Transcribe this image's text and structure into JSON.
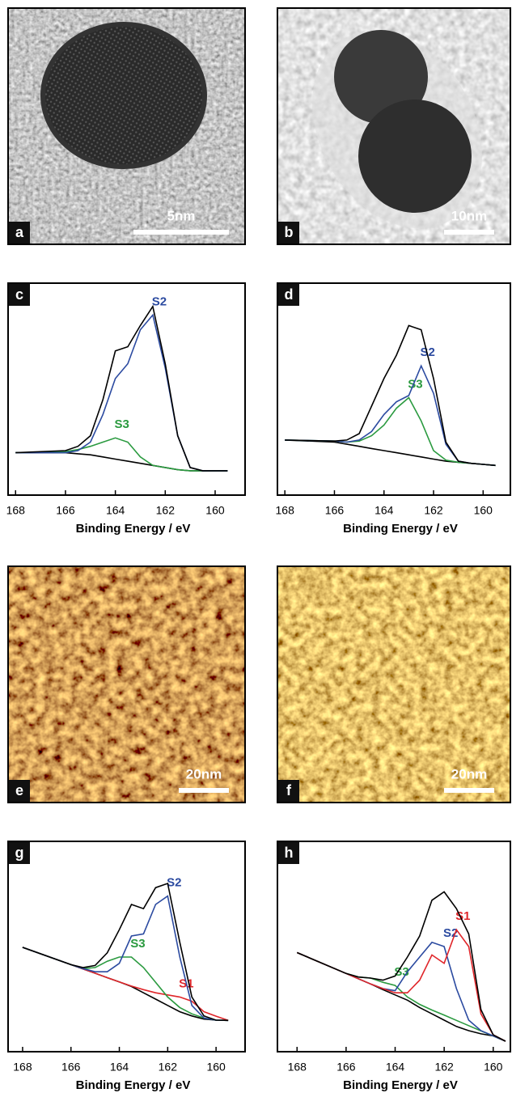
{
  "images": [
    {
      "label": "a",
      "scale_bar": "5nm",
      "kind": "tem1"
    },
    {
      "label": "b",
      "scale_bar": "10nm",
      "kind": "tem2"
    },
    {
      "label": "e",
      "scale_bar": "20nm",
      "kind": "afm1"
    },
    {
      "label": "f",
      "scale_bar": "20nm",
      "kind": "afm2"
    }
  ],
  "chart_data": [
    {
      "type": "line",
      "label": "c",
      "xlabel": "Binding Energy / eV",
      "xlim": [
        168.3,
        158.8
      ],
      "ylim": [
        0,
        100
      ],
      "xticks": [
        168,
        166,
        164,
        162,
        160
      ],
      "x": [
        168,
        166,
        165.5,
        165,
        164.5,
        164,
        163.5,
        163,
        162.5,
        162,
        161.5,
        161,
        160.5,
        160,
        159.5
      ],
      "series": [
        {
          "color": "#000000",
          "values": [
            20,
            20,
            19.5,
            19,
            18,
            17,
            16,
            15,
            14,
            13,
            12,
            11.5,
            11.5,
            11.5,
            11.5
          ]
        },
        {
          "name": "S3",
          "color": "#2a9a3f",
          "values": [
            20,
            20.5,
            21.5,
            23,
            25,
            27,
            25,
            18,
            14,
            13,
            12,
            11.5,
            11.5,
            11.5,
            11.5
          ]
        },
        {
          "name": "S2",
          "color": "#2b4aa0",
          "values": [
            20,
            20,
            21,
            25,
            38,
            55,
            62,
            78,
            85,
            60,
            28,
            13,
            11.5,
            11.5,
            11.5
          ]
        },
        {
          "color": "#000000",
          "values": [
            20,
            21,
            23,
            28,
            45,
            68,
            70,
            80,
            89,
            62,
            28,
            13,
            11.5,
            11.5,
            11.5
          ]
        }
      ]
    },
    {
      "type": "line",
      "label": "d",
      "xlabel": "Binding Energy / eV",
      "xlim": [
        168.3,
        158.9
      ],
      "ylim": [
        0,
        100
      ],
      "xticks": [
        168,
        166,
        164,
        162,
        160
      ],
      "x": [
        168,
        166,
        165.5,
        165,
        164.5,
        164,
        163.5,
        163,
        162.5,
        162,
        161.5,
        161,
        160.5,
        160,
        159.5
      ],
      "series": [
        {
          "color": "#000000",
          "values": [
            26,
            25,
            24,
            23,
            22,
            21,
            20,
            19,
            18,
            17,
            16,
            15.5,
            15,
            14.5,
            14
          ]
        },
        {
          "name": "S3",
          "color": "#2a9a3f",
          "values": [
            26,
            25.5,
            25,
            25.5,
            28,
            33,
            41,
            46,
            35,
            21,
            16.5,
            15.5,
            15,
            14.5,
            14
          ]
        },
        {
          "name": "S2",
          "color": "#2b4aa0",
          "values": [
            26,
            25.5,
            25,
            26,
            30,
            38,
            44,
            47,
            61,
            48,
            24,
            16,
            15,
            14.5,
            14
          ]
        },
        {
          "color": "#000000",
          "values": [
            26,
            25.5,
            26,
            29,
            42,
            55,
            66,
            80,
            78,
            55,
            25,
            16,
            15,
            14.5,
            14
          ]
        }
      ]
    },
    {
      "type": "line",
      "label": "g",
      "xlabel": "Binding Energy / eV",
      "xlim": [
        168.6,
        158.8
      ],
      "ylim": [
        0,
        100
      ],
      "xticks": [
        168,
        166,
        164,
        162,
        160
      ],
      "x": [
        168,
        166,
        165.5,
        165,
        164.5,
        164,
        163.5,
        163,
        162.5,
        162,
        161.5,
        161,
        160.5,
        160,
        159.5
      ],
      "series": [
        {
          "color": "#000000",
          "values": [
            49.6,
            41.4,
            39.3,
            37.3,
            35.2,
            33.2,
            31,
            28,
            25,
            22,
            19,
            17,
            15.5,
            15,
            14.9
          ]
        },
        {
          "name": "S1",
          "color": "#e0262a",
          "values": [
            49.6,
            41.4,
            39.3,
            37.3,
            35.2,
            33.2,
            31.2,
            29.5,
            28,
            27,
            26,
            24,
            19,
            16.9,
            14.9
          ]
        },
        {
          "name": "S3",
          "color": "#2a9a3f",
          "values": [
            49.6,
            41.4,
            39.5,
            40,
            43,
            45,
            45,
            40,
            33,
            26,
            21,
            18,
            16,
            15,
            14.9
          ]
        },
        {
          "name": "S2",
          "color": "#2b4aa0",
          "values": [
            49.6,
            41.4,
            39.5,
            38,
            38,
            42,
            55,
            56,
            70,
            74,
            45,
            22,
            16,
            15,
            14.9
          ]
        },
        {
          "color": "#000000",
          "values": [
            49.6,
            41.4,
            40,
            41,
            47,
            58,
            70,
            68,
            78,
            80,
            52,
            26,
            17,
            15,
            14.9
          ]
        }
      ]
    },
    {
      "type": "line",
      "label": "h",
      "xlabel": "Binding Energy / eV",
      "xlim": [
        168.8,
        159.3
      ],
      "ylim": [
        0,
        100
      ],
      "xticks": [
        168,
        166,
        164,
        162,
        160
      ],
      "x": [
        168,
        166,
        165.5,
        165,
        164.5,
        164,
        163.5,
        163,
        162.5,
        162,
        161.5,
        161,
        160.5,
        160,
        159.5
      ],
      "series": [
        {
          "color": "#000000",
          "values": [
            47.1,
            37.2,
            34.7,
            32.2,
            29.5,
            27,
            24.5,
            21,
            18,
            15,
            12,
            10,
            8.5,
            7.5,
            5
          ]
        },
        {
          "name": "S3",
          "color": "#2a9a3f",
          "values": [
            47.1,
            37.2,
            35.5,
            35,
            33,
            31.5,
            26,
            22.5,
            19.8,
            17.4,
            14.9,
            12.4,
            9.9,
            7.5,
            5
          ]
        },
        {
          "name": "S2",
          "color": "#2b4aa0",
          "values": [
            47.1,
            37.2,
            34.7,
            32.2,
            30,
            29,
            38,
            45,
            52,
            50,
            30,
            15,
            10,
            7.5,
            5
          ]
        },
        {
          "name": "S1",
          "color": "#e0262a",
          "values": [
            47.1,
            37.2,
            34.7,
            32.2,
            30,
            28,
            28,
            34,
            46,
            42,
            58,
            50,
            18,
            8,
            5
          ]
        },
        {
          "color": "#000000",
          "values": [
            47.1,
            37.2,
            35.5,
            35,
            34,
            36,
            45,
            55,
            72,
            76,
            68,
            56,
            20,
            8,
            5
          ]
        }
      ]
    }
  ]
}
